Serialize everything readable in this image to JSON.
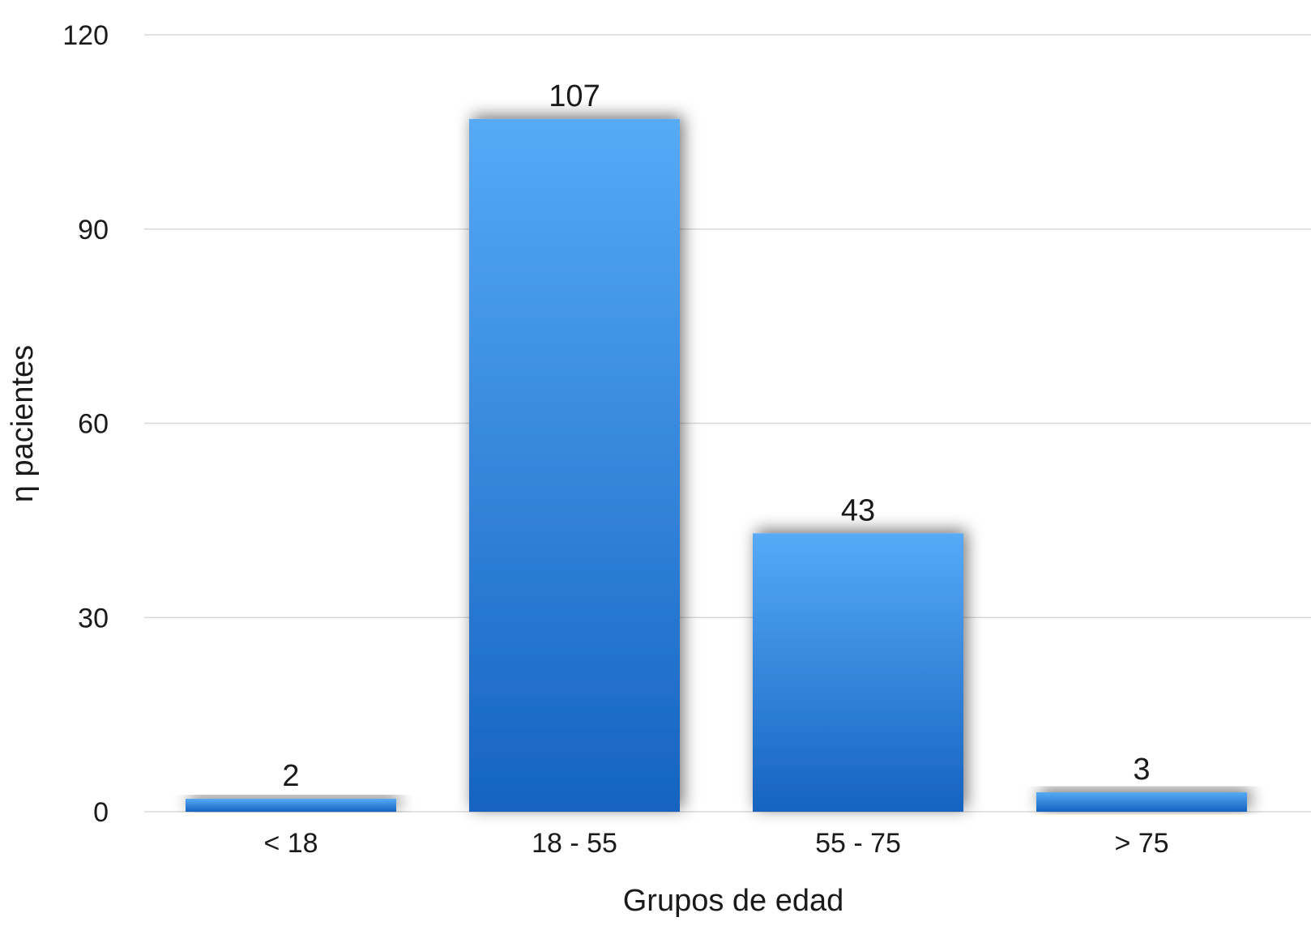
{
  "chart_data": {
    "type": "bar",
    "categories": [
      "< 18",
      "18 - 55",
      "55 - 75",
      "> 75"
    ],
    "values": [
      2,
      107,
      43,
      3
    ],
    "data_labels": [
      "2",
      "107",
      "43",
      "3"
    ],
    "title": "",
    "xlabel": "Grupos de edad",
    "ylabel": "η pacientes",
    "ylim": [
      0,
      120
    ],
    "yticks": [
      0,
      30,
      60,
      90,
      120
    ],
    "ytick_labels": [
      "0",
      "30",
      "60",
      "90",
      "120"
    ],
    "grid": true,
    "legend": "none"
  },
  "colors": {
    "bar_top": "#56aaf6",
    "bar_bottom": "#1563c1",
    "grid": "#d9d9d9",
    "text": "#1a1a1a"
  }
}
